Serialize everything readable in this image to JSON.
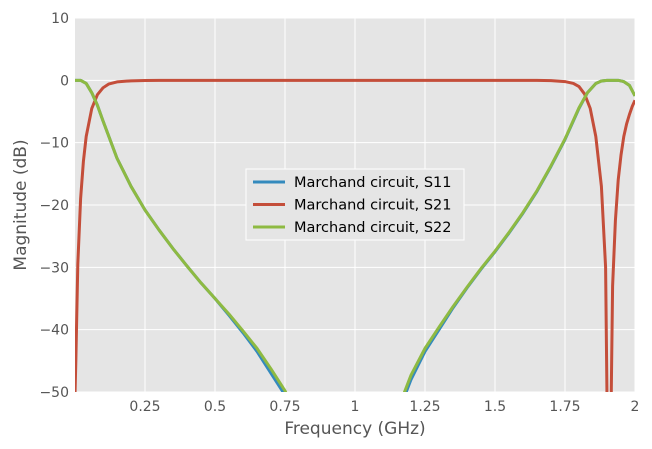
{
  "chart_data": {
    "type": "line",
    "title": "",
    "xlabel": "Frequency (GHz)",
    "ylabel": "Magnitude (dB)",
    "xlim": [
      0.0,
      2.0
    ],
    "ylim": [
      -50,
      10
    ],
    "xticks": [
      0.25,
      0.5,
      0.75,
      1.0,
      1.25,
      1.5,
      1.75,
      2.0
    ],
    "xtick_labels": [
      "0.25",
      "0.5",
      "0.75",
      "1",
      "1.25",
      "1.5",
      "1.75",
      "2"
    ],
    "yticks": [
      10,
      0,
      -10,
      -20,
      -30,
      -40,
      -50
    ],
    "ytick_labels": [
      "10",
      "0",
      "−10",
      "−20",
      "−30",
      "−40",
      "−50"
    ],
    "grid": true,
    "legend_position": "center",
    "series": [
      {
        "name": "Marchand circuit, S11",
        "color": "#348ABD",
        "x": [
          0.0,
          0.02,
          0.04,
          0.06,
          0.08,
          0.1,
          0.15,
          0.2,
          0.25,
          0.3,
          0.35,
          0.4,
          0.45,
          0.5,
          0.55,
          0.6,
          0.65,
          0.7,
          0.75,
          0.77,
          1.17,
          1.2,
          1.25,
          1.3,
          1.35,
          1.4,
          1.45,
          1.5,
          1.55,
          1.6,
          1.65,
          1.7,
          1.75,
          1.8,
          1.83,
          1.86,
          1.88,
          1.9,
          1.92,
          1.94,
          1.96,
          1.98,
          2.0
        ],
        "y": [
          0.0,
          0.0,
          -0.5,
          -2.0,
          -4.0,
          -6.5,
          -12.5,
          -17.0,
          -20.8,
          -24.0,
          -27.0,
          -29.8,
          -32.5,
          -35.0,
          -37.7,
          -40.5,
          -43.5,
          -47.0,
          -50.5,
          -52.5,
          -51.5,
          -48.0,
          -43.5,
          -40.0,
          -36.5,
          -33.3,
          -30.3,
          -27.5,
          -24.5,
          -21.3,
          -17.8,
          -13.8,
          -9.5,
          -4.5,
          -2.0,
          -0.5,
          -0.1,
          0.0,
          0.0,
          0.0,
          -0.2,
          -0.8,
          -2.5
        ]
      },
      {
        "name": "Marchand circuit, S21",
        "color": "#C44E3A",
        "x": [
          0.0,
          0.003,
          0.01,
          0.02,
          0.03,
          0.04,
          0.06,
          0.08,
          0.1,
          0.12,
          0.15,
          0.2,
          0.25,
          0.3,
          0.5,
          1.0,
          1.5,
          1.65,
          1.7,
          1.75,
          1.78,
          1.8,
          1.82,
          1.84,
          1.86,
          1.88,
          1.895,
          1.9,
          1.915,
          1.92,
          1.93,
          1.94,
          1.95,
          1.96,
          1.97,
          1.98,
          1.99,
          2.0
        ],
        "y": [
          -50.5,
          -45.0,
          -29.5,
          -19.0,
          -13.0,
          -9.0,
          -4.5,
          -2.3,
          -1.2,
          -0.6,
          -0.25,
          -0.08,
          -0.03,
          0.0,
          0.0,
          0.0,
          0.0,
          0.0,
          -0.05,
          -0.2,
          -0.5,
          -1.0,
          -2.2,
          -4.5,
          -9.0,
          -17.0,
          -30.0,
          -51.0,
          -51.0,
          -33.0,
          -22.5,
          -16.0,
          -12.0,
          -9.0,
          -7.0,
          -5.5,
          -4.2,
          -3.2
        ]
      },
      {
        "name": "Marchand circuit, S22",
        "color": "#8EBA42",
        "x": [
          0.0,
          0.02,
          0.04,
          0.06,
          0.08,
          0.1,
          0.15,
          0.2,
          0.25,
          0.3,
          0.35,
          0.4,
          0.45,
          0.5,
          0.55,
          0.6,
          0.65,
          0.7,
          0.75,
          0.77,
          1.17,
          1.2,
          1.25,
          1.3,
          1.35,
          1.4,
          1.45,
          1.5,
          1.55,
          1.6,
          1.65,
          1.7,
          1.75,
          1.8,
          1.83,
          1.86,
          1.88,
          1.9,
          1.92,
          1.94,
          1.96,
          1.98,
          2.0
        ],
        "y": [
          0.0,
          0.0,
          -0.5,
          -2.0,
          -4.0,
          -6.5,
          -12.5,
          -17.0,
          -20.8,
          -24.0,
          -27.0,
          -29.8,
          -32.5,
          -35.0,
          -37.5,
          -40.2,
          -43.0,
          -46.3,
          -49.8,
          -51.8,
          -50.8,
          -47.3,
          -43.0,
          -39.6,
          -36.3,
          -33.2,
          -30.2,
          -27.4,
          -24.4,
          -21.2,
          -17.7,
          -13.7,
          -9.4,
          -4.4,
          -2.0,
          -0.5,
          -0.1,
          0.0,
          0.0,
          0.0,
          -0.2,
          -0.8,
          -2.5
        ]
      }
    ]
  }
}
